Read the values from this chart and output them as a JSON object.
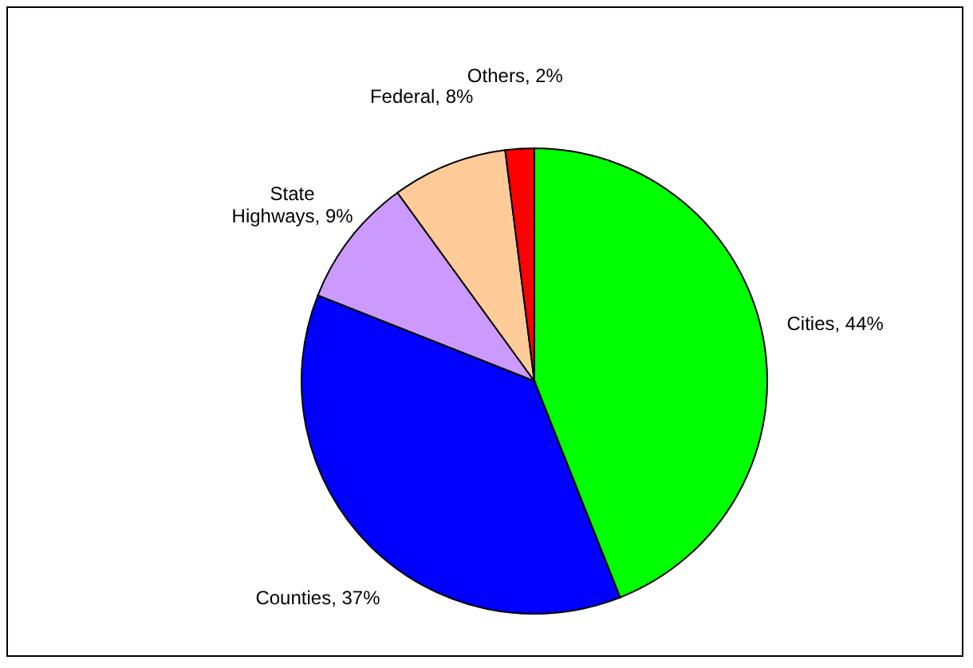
{
  "chart_data": {
    "type": "pie",
    "categories": [
      "Cities",
      "Counties",
      "State Highways",
      "Federal",
      "Others"
    ],
    "values": [
      44,
      37,
      9,
      8,
      2
    ],
    "value_labels": [
      "44%",
      "37%",
      "9%",
      "8%",
      "2%"
    ],
    "colors": [
      "#00ff00",
      "#0000ff",
      "#cc99ff",
      "#ffcc99",
      "#ff0000"
    ]
  }
}
